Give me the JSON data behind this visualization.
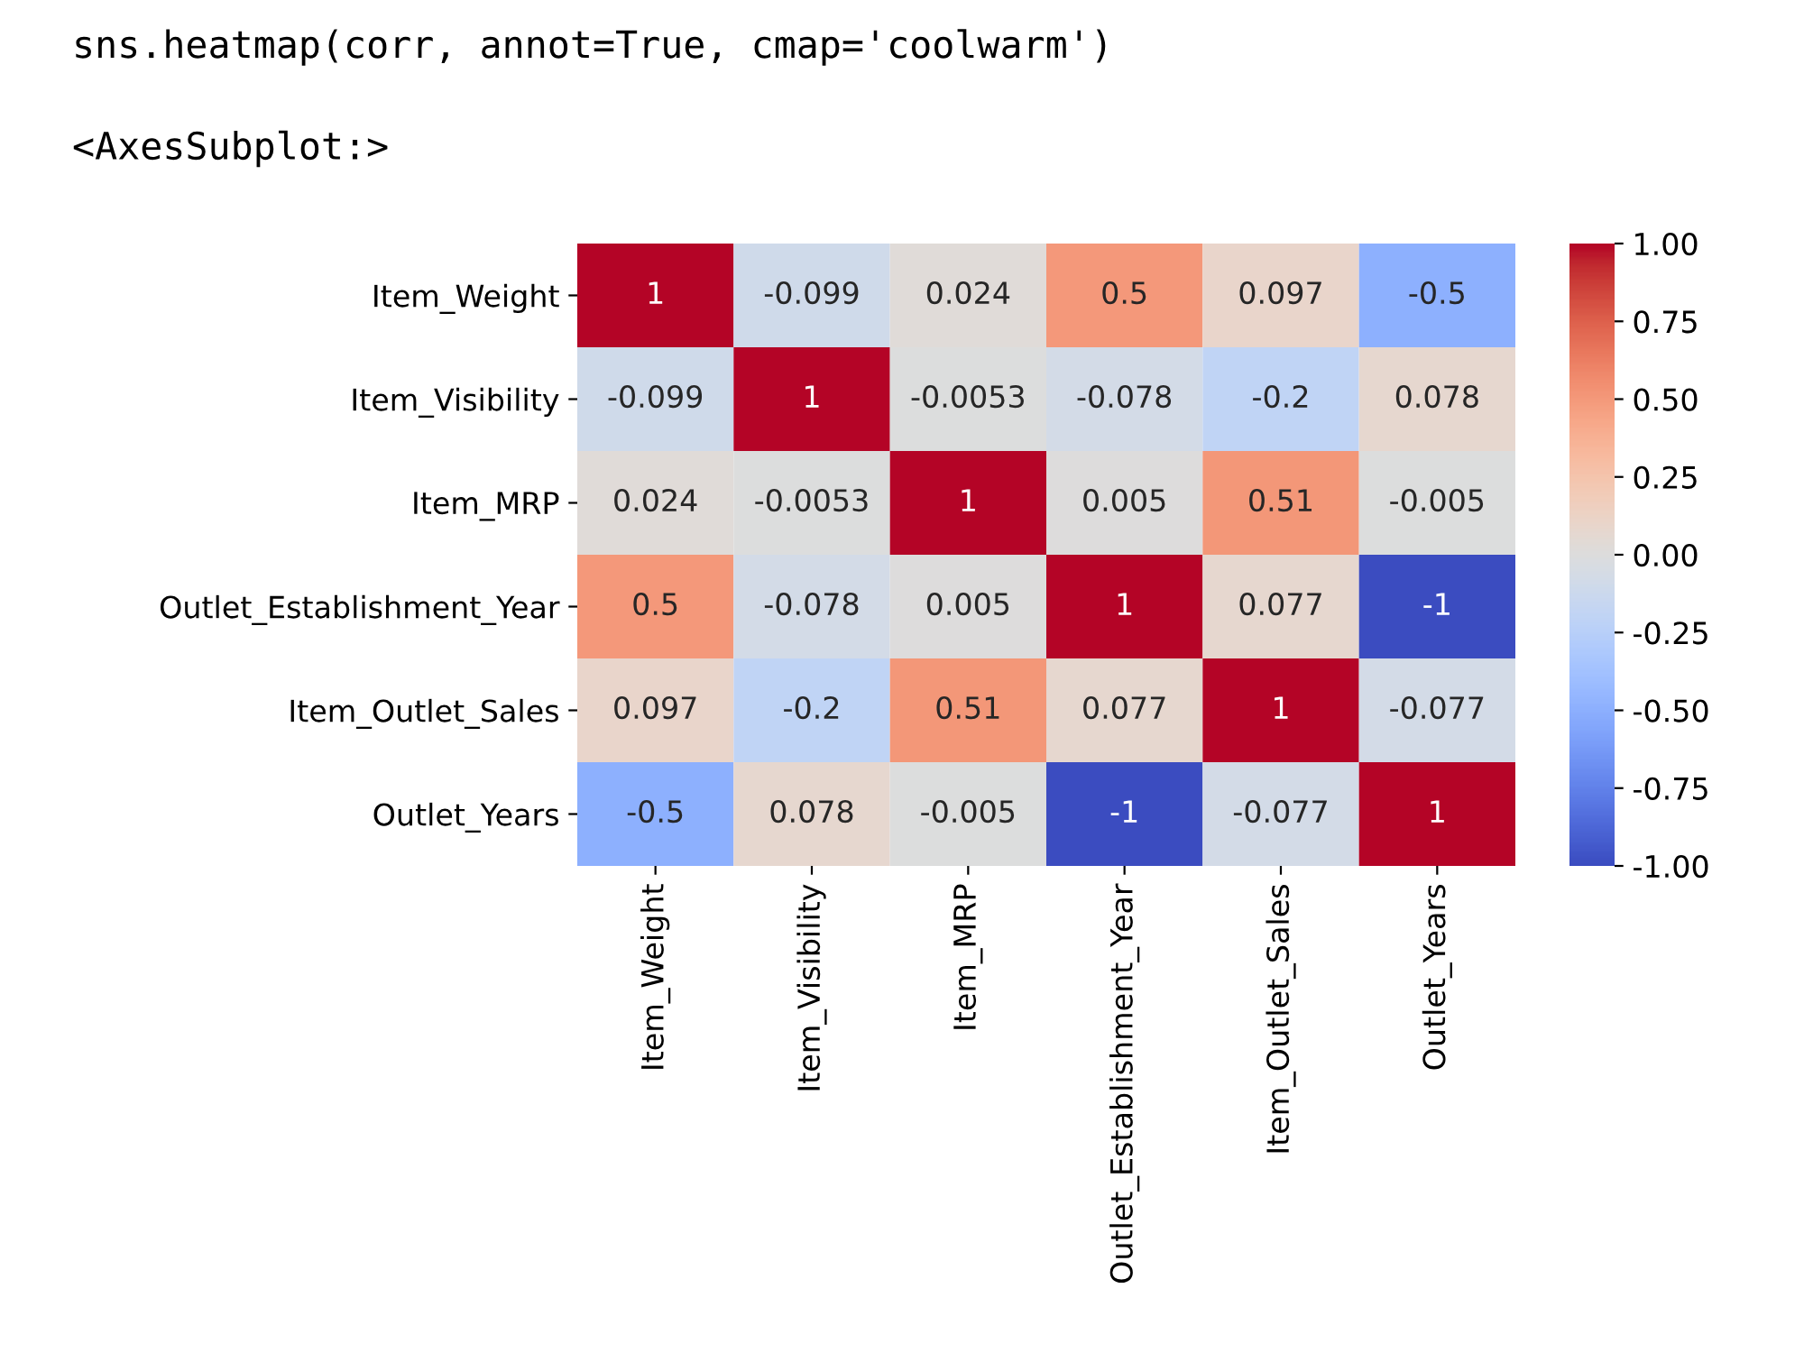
{
  "chart_data": {
    "type": "heatmap",
    "annotations": [
      "sns.heatmap(corr, annot=True, cmap='coolwarm')",
      "<AxesSubplot:>"
    ],
    "categories": [
      "Item_Weight",
      "Item_Visibility",
      "Item_MRP",
      "Outlet_Establishment_Year",
      "Item_Outlet_Sales",
      "Outlet_Years"
    ],
    "y_categories": [
      "Item_Weight",
      "Item_Visibility",
      "Item_MRP",
      "Outlet_Establishment_Year",
      "Item_Outlet_Sales",
      "Outlet_Years"
    ],
    "cells": [
      [
        1,
        -0.099,
        0.024,
        0.5,
        0.097,
        -0.5
      ],
      [
        -0.099,
        1,
        -0.0053,
        -0.078,
        -0.2,
        0.078
      ],
      [
        0.024,
        -0.0053,
        1,
        0.005,
        0.51,
        -0.005
      ],
      [
        0.5,
        -0.078,
        0.005,
        1,
        0.077,
        -1
      ],
      [
        0.097,
        -0.2,
        0.51,
        0.077,
        1,
        -0.077
      ],
      [
        -0.5,
        0.078,
        -0.005,
        -1,
        -0.077,
        1
      ]
    ],
    "data_labels": true,
    "clim": [
      -1,
      1
    ],
    "cticks": [
      {
        "value": -1,
        "label": "-1.00"
      },
      {
        "value": -0.75,
        "label": "-0.75"
      },
      {
        "value": -0.5,
        "label": "-0.50"
      },
      {
        "value": -0.25,
        "label": "-0.25"
      },
      {
        "value": 0,
        "label": "0.00"
      },
      {
        "value": 0.25,
        "label": "0.25"
      },
      {
        "value": 0.5,
        "label": "0.50"
      },
      {
        "value": 0.75,
        "label": "0.75"
      },
      {
        "value": 1,
        "label": "1.00"
      }
    ]
  }
}
